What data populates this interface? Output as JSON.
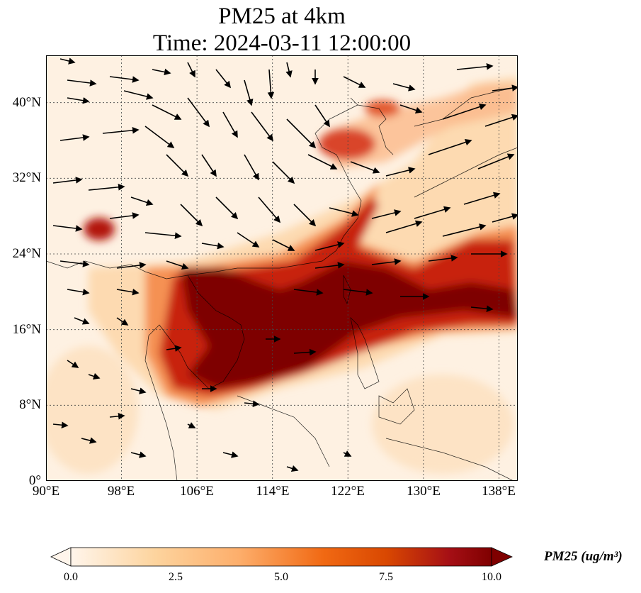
{
  "title": {
    "line1": "PM25 at 4km",
    "line2": "Time: 2024-03-11 12:00:00"
  },
  "map": {
    "lon_range": [
      90,
      140
    ],
    "lat_range": [
      0,
      45
    ],
    "lat_ticks": [
      {
        "value": 0,
        "label": "0°"
      },
      {
        "value": 8,
        "label": "8°N"
      },
      {
        "value": 16,
        "label": "16°N"
      },
      {
        "value": 24,
        "label": "24°N"
      },
      {
        "value": 32,
        "label": "32°N"
      },
      {
        "value": 40,
        "label": "40°N"
      }
    ],
    "lon_ticks": [
      {
        "value": 90,
        "label": "90°E"
      },
      {
        "value": 98,
        "label": "98°E"
      },
      {
        "value": 106,
        "label": "106°E"
      },
      {
        "value": 114,
        "label": "114°E"
      },
      {
        "value": 122,
        "label": "122°E"
      },
      {
        "value": 130,
        "label": "130°E"
      },
      {
        "value": 138,
        "label": "138°E"
      }
    ],
    "gridlines": true,
    "field_colors": {
      "background": "#fef1e2",
      "low": "#fdd6a8",
      "mid": "#f5894a",
      "high": "#c8220f",
      "max": "#7e0000"
    }
  },
  "colorbar": {
    "label": "PM25 (ug/m³)",
    "min": 0.0,
    "max": 10.0,
    "extend": "both",
    "ticks": [
      "0.0",
      "2.5",
      "5.0",
      "7.5",
      "10.0"
    ],
    "tick_values": [
      0,
      2.5,
      5.0,
      7.5,
      10.0
    ],
    "colors": [
      "#fff5eb",
      "#fdd49e",
      "#fdae6b",
      "#f16913",
      "#d94801",
      "#a50f15",
      "#7f0000"
    ]
  }
}
